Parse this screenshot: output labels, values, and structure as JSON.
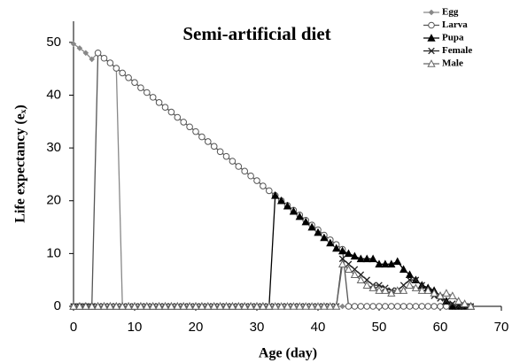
{
  "chart_data": {
    "type": "line",
    "title": "Semi-artificial diet",
    "x_label": "Age (day)",
    "y_label": "Life expectancy (eₓ)",
    "xlim": [
      0,
      70
    ],
    "ylim": [
      0,
      54
    ],
    "xticks": [
      0,
      10,
      20,
      30,
      40,
      50,
      60,
      70
    ],
    "yticks": [
      0,
      10,
      20,
      30,
      40,
      50
    ],
    "legend": "top-right",
    "x": [
      0,
      1,
      2,
      3,
      4,
      5,
      6,
      7,
      8,
      9,
      10,
      11,
      12,
      13,
      14,
      15,
      16,
      17,
      18,
      19,
      20,
      21,
      22,
      23,
      24,
      25,
      26,
      27,
      28,
      29,
      30,
      31,
      32,
      33,
      34,
      35,
      36,
      37,
      38,
      39,
      40,
      41,
      42,
      43,
      44,
      45,
      46,
      47,
      48,
      49,
      50,
      51,
      52,
      53,
      54,
      55,
      56,
      57,
      58,
      59,
      60,
      61,
      62,
      63,
      64,
      65
    ],
    "series": [
      {
        "name": "Egg",
        "color": "#888888",
        "marker": "diamond",
        "values": [
          49.7,
          48.9,
          48,
          46.8,
          48,
          47,
          46,
          45.2,
          0,
          0,
          0,
          0,
          0,
          0,
          0,
          0,
          0,
          0,
          0,
          0,
          0,
          0,
          0,
          0,
          0,
          0,
          0,
          0,
          0,
          0,
          0,
          0,
          0,
          0,
          0,
          0,
          0,
          0,
          0,
          0,
          0,
          0,
          0,
          0,
          0,
          0,
          0,
          0,
          0,
          0,
          0,
          0,
          0,
          0,
          0,
          0,
          0,
          0,
          0,
          0,
          0,
          0,
          0,
          0,
          0,
          0
        ]
      },
      {
        "name": "Larva",
        "color": "#555555",
        "marker": "circle",
        "values": [
          0,
          0,
          0,
          0,
          48,
          47,
          46.1,
          45.1,
          44.2,
          43.3,
          42.4,
          41.4,
          40.5,
          39.6,
          38.6,
          37.7,
          36.8,
          35.8,
          34.9,
          34,
          33.1,
          32.1,
          31.2,
          30.3,
          29.3,
          28.4,
          27.5,
          26.5,
          25.6,
          24.7,
          23.8,
          22.8,
          21.9,
          21,
          20,
          19.1,
          18.2,
          17.3,
          16.3,
          15.4,
          14.5,
          13.5,
          12.6,
          11.7,
          10.8,
          0,
          0,
          0,
          0,
          0,
          0,
          0,
          0,
          0,
          0,
          0,
          0,
          0,
          0,
          0,
          0,
          0,
          0,
          0,
          0,
          0
        ]
      },
      {
        "name": "Pupa",
        "color": "#000000",
        "marker": "triangle",
        "values": [
          0,
          0,
          0,
          0,
          0,
          0,
          0,
          0,
          0,
          0,
          0,
          0,
          0,
          0,
          0,
          0,
          0,
          0,
          0,
          0,
          0,
          0,
          0,
          0,
          0,
          0,
          0,
          0,
          0,
          0,
          0,
          0,
          0,
          21,
          20,
          19,
          18,
          17,
          16,
          15,
          14,
          13,
          12,
          11,
          10.5,
          10,
          9.5,
          9,
          9,
          9,
          8,
          8,
          8,
          8.5,
          7,
          6,
          5,
          4,
          3.5,
          3,
          2,
          1,
          0,
          0,
          0,
          0
        ]
      },
      {
        "name": "Female",
        "color": "#222222",
        "marker": "cross",
        "values": [
          0,
          0,
          0,
          0,
          0,
          0,
          0,
          0,
          0,
          0,
          0,
          0,
          0,
          0,
          0,
          0,
          0,
          0,
          0,
          0,
          0,
          0,
          0,
          0,
          0,
          0,
          0,
          0,
          0,
          0,
          0,
          0,
          0,
          0,
          0,
          0,
          0,
          0,
          0,
          0,
          0,
          0,
          0,
          0,
          9,
          8,
          7,
          6,
          5,
          4,
          4,
          3.5,
          3,
          3,
          4,
          5,
          5,
          4,
          3,
          2,
          1.5,
          1,
          0.5,
          0,
          0,
          0
        ]
      },
      {
        "name": "Male",
        "color": "#666666",
        "marker": "open-triangle",
        "values": [
          0,
          0,
          0,
          0,
          0,
          0,
          0,
          0,
          0,
          0,
          0,
          0,
          0,
          0,
          0,
          0,
          0,
          0,
          0,
          0,
          0,
          0,
          0,
          0,
          0,
          0,
          0,
          0,
          0,
          0,
          0,
          0,
          0,
          0,
          0,
          0,
          0,
          0,
          0,
          0,
          0,
          0,
          0,
          0,
          8,
          7,
          6,
          5,
          4,
          3.5,
          3,
          3,
          2.5,
          3,
          3,
          4,
          3.5,
          3,
          3,
          2.5,
          2,
          2.5,
          2,
          1,
          0.5,
          0
        ]
      }
    ]
  }
}
